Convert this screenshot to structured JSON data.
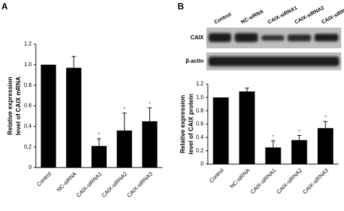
{
  "chart_data": [
    {
      "type": "bar",
      "panel_label": "A",
      "y_label": [
        "Relative expression",
        "level of CAIX mRNA"
      ],
      "categories": [
        "Control",
        "NC-siRNA",
        "CAIX-siRNA1",
        "CAIX-siRNA2",
        "CAIX-siRNA3"
      ],
      "values": [
        1.0,
        0.97,
        0.21,
        0.36,
        0.45
      ],
      "errors": [
        null,
        0.11,
        0.07,
        0.17,
        0.13
      ],
      "significance": [
        null,
        null,
        "*",
        "*",
        "*"
      ],
      "color": "#000000",
      "ylim": [
        0,
        1.2
      ],
      "yticks": [
        0,
        0.2,
        0.4,
        0.6,
        0.8,
        {
          "value": 1,
          "label": "1.0"
        },
        1.2
      ]
    },
    {
      "type": "bar",
      "panel_label": "B",
      "y_label": [
        "Relative expression",
        "level of CAIX protein"
      ],
      "categories": [
        "Control",
        "NC-siRNA",
        "CAIX-siRNA1",
        "CAIX-siRNA2",
        "CAIX-siRNA3"
      ],
      "values": [
        1.0,
        1.09,
        0.25,
        0.36,
        0.54
      ],
      "errors": [
        null,
        0.05,
        0.1,
        0.07,
        0.1
      ],
      "significance": [
        null,
        null,
        "*",
        "*",
        "*"
      ],
      "color": "#000000",
      "ylim": [
        0,
        1.2
      ],
      "yticks": [
        0,
        0.2,
        0.4,
        0.6,
        0.8,
        {
          "value": 1,
          "label": "1.0"
        },
        1.2
      ]
    }
  ],
  "blot": {
    "lanes": [
      "Control",
      "NC-siRNA",
      "CAIX-siRNA1",
      "CAIX-siRNA2",
      "CAIX-siRNA3"
    ],
    "rows": [
      "CAIX",
      "β-actin"
    ]
  }
}
